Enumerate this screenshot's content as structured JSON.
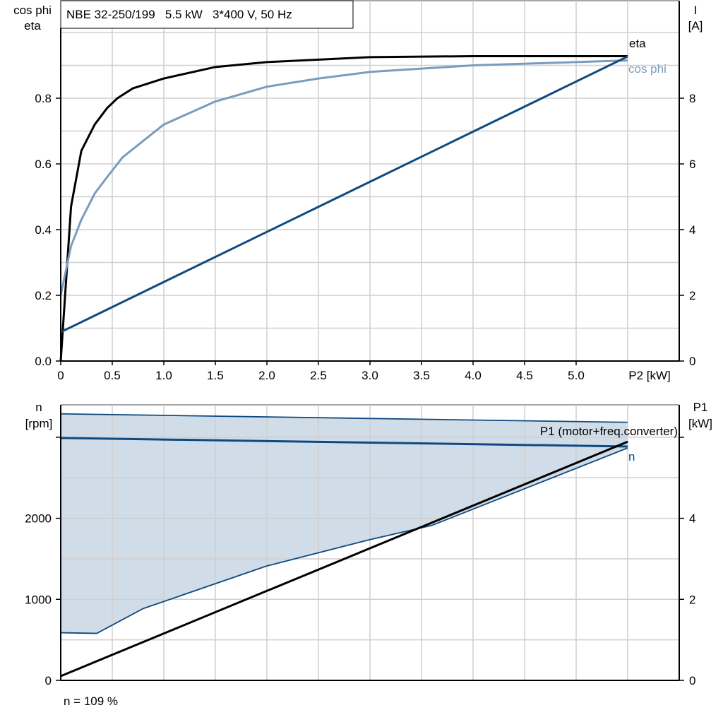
{
  "chart_data": [
    {
      "type": "line",
      "title": "NBE 32-250/199   5.5 kW   3*400 V, 50 Hz",
      "xlabel": "P2 [kW]",
      "ylabel_left": [
        "cos phi",
        "eta"
      ],
      "ylabel_right": [
        "I",
        "[A]"
      ],
      "xlim": [
        0,
        6.0
      ],
      "ylim_left": [
        0,
        1.0
      ],
      "ylim_right": [
        0,
        10
      ],
      "grid": true,
      "x_ticks": [
        "0",
        "0.5",
        "1.0",
        "1.5",
        "2.0",
        "2.5",
        "3.0",
        "3.5",
        "4.0",
        "4.5",
        "5.0"
      ],
      "y_ticks_left": [
        "0.0",
        "0.2",
        "0.4",
        "0.6",
        "0.8"
      ],
      "y_ticks_right": [
        "0",
        "2",
        "4",
        "6",
        "8"
      ],
      "colors": {
        "eta": "#000000",
        "cos_phi": "#7a9cbc",
        "current": "#0e4a80"
      },
      "series": [
        {
          "name": "eta",
          "axis": "left",
          "x": [
            0,
            0.1,
            0.2,
            0.33,
            0.45,
            0.55,
            0.7,
            1.0,
            1.5,
            2.0,
            3.0,
            4.0,
            5.5
          ],
          "y": [
            0,
            0.47,
            0.64,
            0.72,
            0.77,
            0.8,
            0.83,
            0.86,
            0.895,
            0.91,
            0.925,
            0.928,
            0.928
          ]
        },
        {
          "name": "cos phi",
          "axis": "left",
          "x": [
            0,
            0.1,
            0.2,
            0.33,
            0.45,
            0.6,
            0.8,
            1.0,
            1.5,
            2.0,
            2.5,
            3.0,
            4.0,
            5.5
          ],
          "y": [
            0.2,
            0.35,
            0.43,
            0.51,
            0.56,
            0.62,
            0.67,
            0.72,
            0.79,
            0.835,
            0.86,
            0.88,
            0.9,
            0.915
          ]
        },
        {
          "axis": "right",
          "x": [
            0,
            5.5
          ],
          "y": [
            0.88,
            9.27
          ]
        }
      ]
    },
    {
      "type": "line",
      "ylabel_left": [
        "n",
        "[rpm]"
      ],
      "ylabel_right": [
        "P1",
        "[kW]"
      ],
      "xlim": [
        0,
        6.0
      ],
      "ylim_left": [
        0,
        3400
      ],
      "ylim_right": [
        0,
        6.8
      ],
      "grid": true,
      "y_ticks_left": [
        "0",
        "1000",
        "2000"
      ],
      "y_ticks_right": [
        "0",
        "2",
        "4"
      ],
      "footnote": "n = 109 %",
      "colors": {
        "n": "#0e4a80",
        "area": "#d0dce8",
        "p1": "#000000"
      },
      "speed_range": {
        "upper": {
          "x": [
            0,
            5.5
          ],
          "y": [
            3289,
            3184
          ]
        },
        "lower": {
          "x": [
            0,
            0.35,
            0.8,
            2.0,
            3.0,
            3.6,
            5.5
          ],
          "y": [
            588,
            580,
            886,
            1412,
            1737,
            1912,
            2868
          ]
        }
      },
      "series": [
        {
          "name": "n",
          "axis": "left",
          "x": [
            0,
            5.5
          ],
          "y": [
            2991,
            2886
          ]
        },
        {
          "name": "P1 (motor+freq.converter)",
          "axis": "right",
          "x": [
            0,
            5.5
          ],
          "y": [
            0.105,
            5.89
          ]
        }
      ]
    }
  ]
}
